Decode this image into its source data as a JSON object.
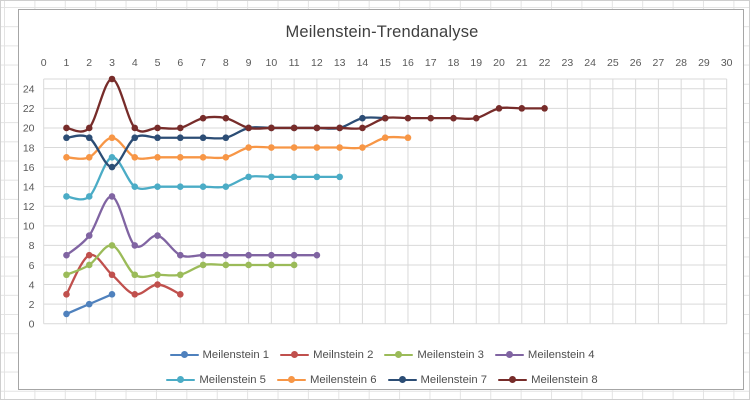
{
  "window": {
    "description_label": "Excel-style milestone trend analysis chart object on a spreadsheet"
  },
  "chart_data": {
    "type": "line",
    "title": "Meilenstein-Trendanalyse",
    "smoothed": true,
    "grid": "on",
    "legend_position": "bottom",
    "x_axis": {
      "position": "top",
      "min": 0,
      "max": 30,
      "tick_step": 1,
      "ticks": [
        0,
        1,
        2,
        3,
        4,
        5,
        6,
        7,
        8,
        9,
        10,
        11,
        12,
        13,
        14,
        15,
        16,
        17,
        18,
        19,
        20,
        21,
        22,
        23,
        24,
        25,
        26,
        27,
        28,
        29,
        30
      ]
    },
    "y_axis": {
      "position": "left",
      "min": 0,
      "max": 25,
      "tick_step": 2,
      "ticks": [
        0,
        2,
        4,
        6,
        8,
        10,
        12,
        14,
        16,
        18,
        20,
        22,
        24
      ]
    },
    "series": [
      {
        "name": "Meilenstein 1",
        "color": "#4F81BD",
        "x_start": 1,
        "values": [
          1,
          2,
          3
        ]
      },
      {
        "name": "Meilnstein 2",
        "color": "#C0504D",
        "x_start": 1,
        "values": [
          3,
          7,
          5,
          3,
          4,
          3
        ]
      },
      {
        "name": "Meilenstein 3",
        "color": "#9BBB59",
        "x_start": 1,
        "values": [
          5,
          6,
          8,
          5,
          5,
          5,
          6,
          6,
          6,
          6,
          6
        ]
      },
      {
        "name": "Meilenstein 4",
        "color": "#8064A2",
        "x_start": 1,
        "values": [
          7,
          9,
          13,
          8,
          9,
          7,
          7,
          7,
          7,
          7,
          7,
          7
        ]
      },
      {
        "name": "Meilenstein 5",
        "color": "#4BACC6",
        "x_start": 1,
        "values": [
          13,
          13,
          17,
          14,
          14,
          14,
          14,
          14,
          15,
          15,
          15,
          15,
          15
        ]
      },
      {
        "name": "Meilenstein 6",
        "color": "#F79646",
        "x_start": 1,
        "values": [
          17,
          17,
          19,
          17,
          17,
          17,
          17,
          17,
          18,
          18,
          18,
          18,
          18,
          18,
          19,
          19
        ]
      },
      {
        "name": "Meilenstein 7",
        "color": "#2C4D75",
        "x_start": 1,
        "values": [
          19,
          19,
          16,
          19,
          19,
          19,
          19,
          19,
          20,
          20,
          20,
          20,
          20,
          21,
          21
        ]
      },
      {
        "name": "Meilenstein 8",
        "color": "#772C2A",
        "x_start": 1,
        "values": [
          20,
          20,
          25,
          20,
          20,
          20,
          21,
          21,
          20,
          20,
          20,
          20,
          20,
          20,
          21,
          21,
          21,
          21,
          21,
          22,
          22,
          22
        ]
      }
    ]
  },
  "colors": {
    "plot_gridline": "#d9d9d9",
    "axis_label_text": "#595959",
    "title_text": "#3f3f3f",
    "chart_border": "#a6a6a6",
    "sheet_gridline": "#e3e3e3",
    "background": "#ffffff"
  }
}
